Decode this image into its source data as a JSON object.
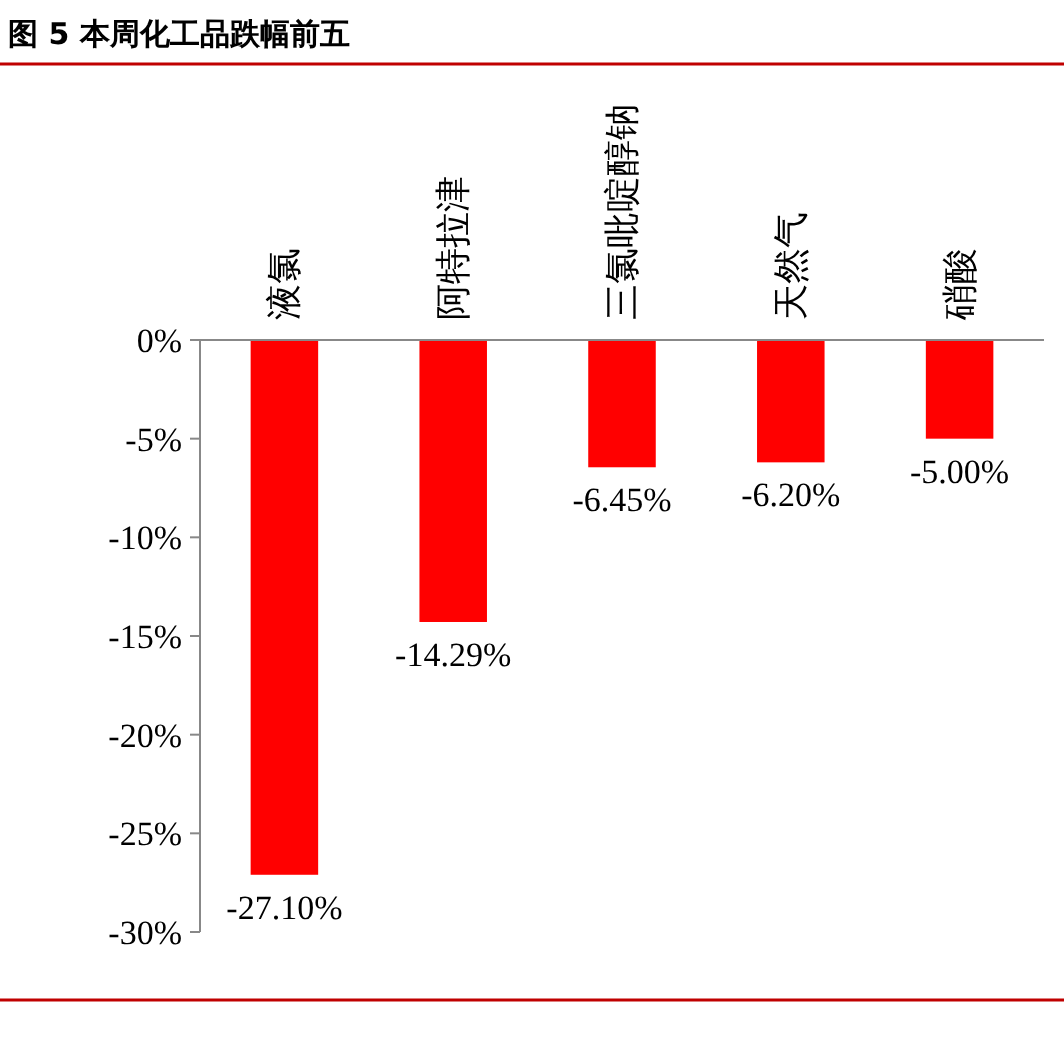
{
  "chart_data": {
    "type": "bar",
    "title": "图 5 本周化工品跌幅前五",
    "categories": [
      "液氯",
      "阿特拉津",
      "三氯吡啶醇钠",
      "天然气",
      "硝酸"
    ],
    "values": [
      -27.1,
      -14.29,
      -6.45,
      -6.2,
      -5.0
    ],
    "color": "#ff0000",
    "value_labels": [
      "-27.10%",
      "-14.29%",
      "-6.45%",
      "-6.20%",
      "-5.00%"
    ],
    "ylim": [
      -30,
      0
    ],
    "yticks": [
      {
        "value": 0,
        "label": "0%"
      },
      {
        "value": -5,
        "label": "-5%"
      },
      {
        "value": -10,
        "label": "-10%"
      },
      {
        "value": -15,
        "label": "-15%"
      },
      {
        "value": -20,
        "label": "-20%"
      },
      {
        "value": -25,
        "label": "-25%"
      },
      {
        "value": -30,
        "label": "-30%"
      }
    ],
    "grid": false
  }
}
